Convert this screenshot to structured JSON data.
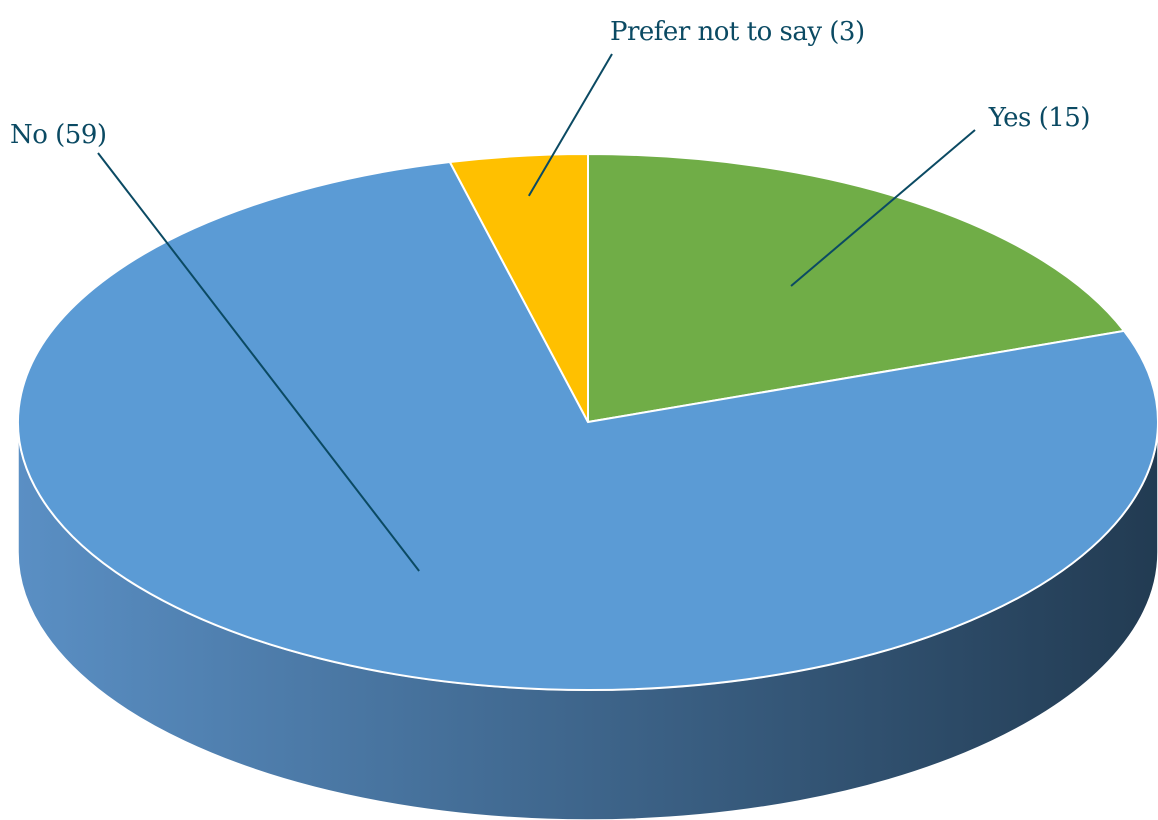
{
  "chart_data": {
    "type": "pie",
    "title": "",
    "three_d": true,
    "start_angle_deg": -90,
    "direction": "clockwise",
    "slices": [
      {
        "key": "yes",
        "label": "Yes (15)",
        "value": 15,
        "color": "#70ad47"
      },
      {
        "key": "no",
        "label": "No (59)",
        "value": 59,
        "color": "#5b9bd5"
      },
      {
        "key": "prefer-not-to-say",
        "label": "Prefer not to say (3)",
        "value": 3,
        "color": "#ffc000"
      }
    ],
    "label_color": "#0b4a63",
    "leader_line_color": "#0b4a63",
    "side_gradient": [
      "#5a8fc4",
      "#223b52"
    ]
  }
}
